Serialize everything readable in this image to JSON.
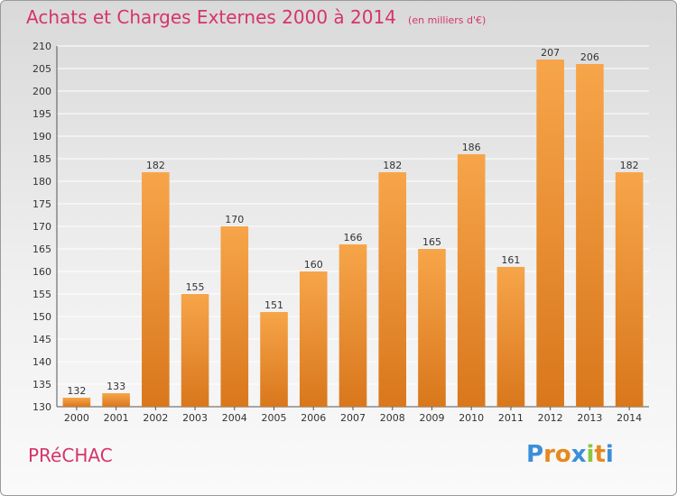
{
  "header": {
    "title": "Achats et Charges Externes 2000 à 2014",
    "unit": "(en milliers d'€)"
  },
  "commune": "PRéCHAC",
  "logo": {
    "letters": [
      "P",
      "r",
      "o",
      "x",
      "i",
      "t",
      "i"
    ],
    "colors": [
      "#3a8fd8",
      "#e5891f",
      "#e5891f",
      "#3a8fd8",
      "#8cc63f",
      "#e5891f",
      "#3a8fd8"
    ]
  },
  "colors": {
    "bar_top": "#f7a54a",
    "bar_bottom": "#d9771c",
    "grid": "#ffffff",
    "title": "#d6336c"
  },
  "chart_data": {
    "type": "bar",
    "title": "Achats et Charges Externes 2000 à 2014",
    "categories": [
      "2000",
      "2001",
      "2002",
      "2003",
      "2004",
      "2005",
      "2006",
      "2007",
      "2008",
      "2009",
      "2010",
      "2011",
      "2012",
      "2013",
      "2014"
    ],
    "values": [
      132,
      133,
      182,
      155,
      170,
      151,
      160,
      166,
      182,
      165,
      186,
      161,
      207,
      206,
      182
    ],
    "ylim": [
      130,
      210
    ],
    "yticks": [
      130,
      135,
      140,
      145,
      150,
      155,
      160,
      165,
      170,
      175,
      180,
      185,
      190,
      195,
      200,
      205,
      210
    ],
    "xlabel": "",
    "ylabel": "",
    "grid": true
  }
}
